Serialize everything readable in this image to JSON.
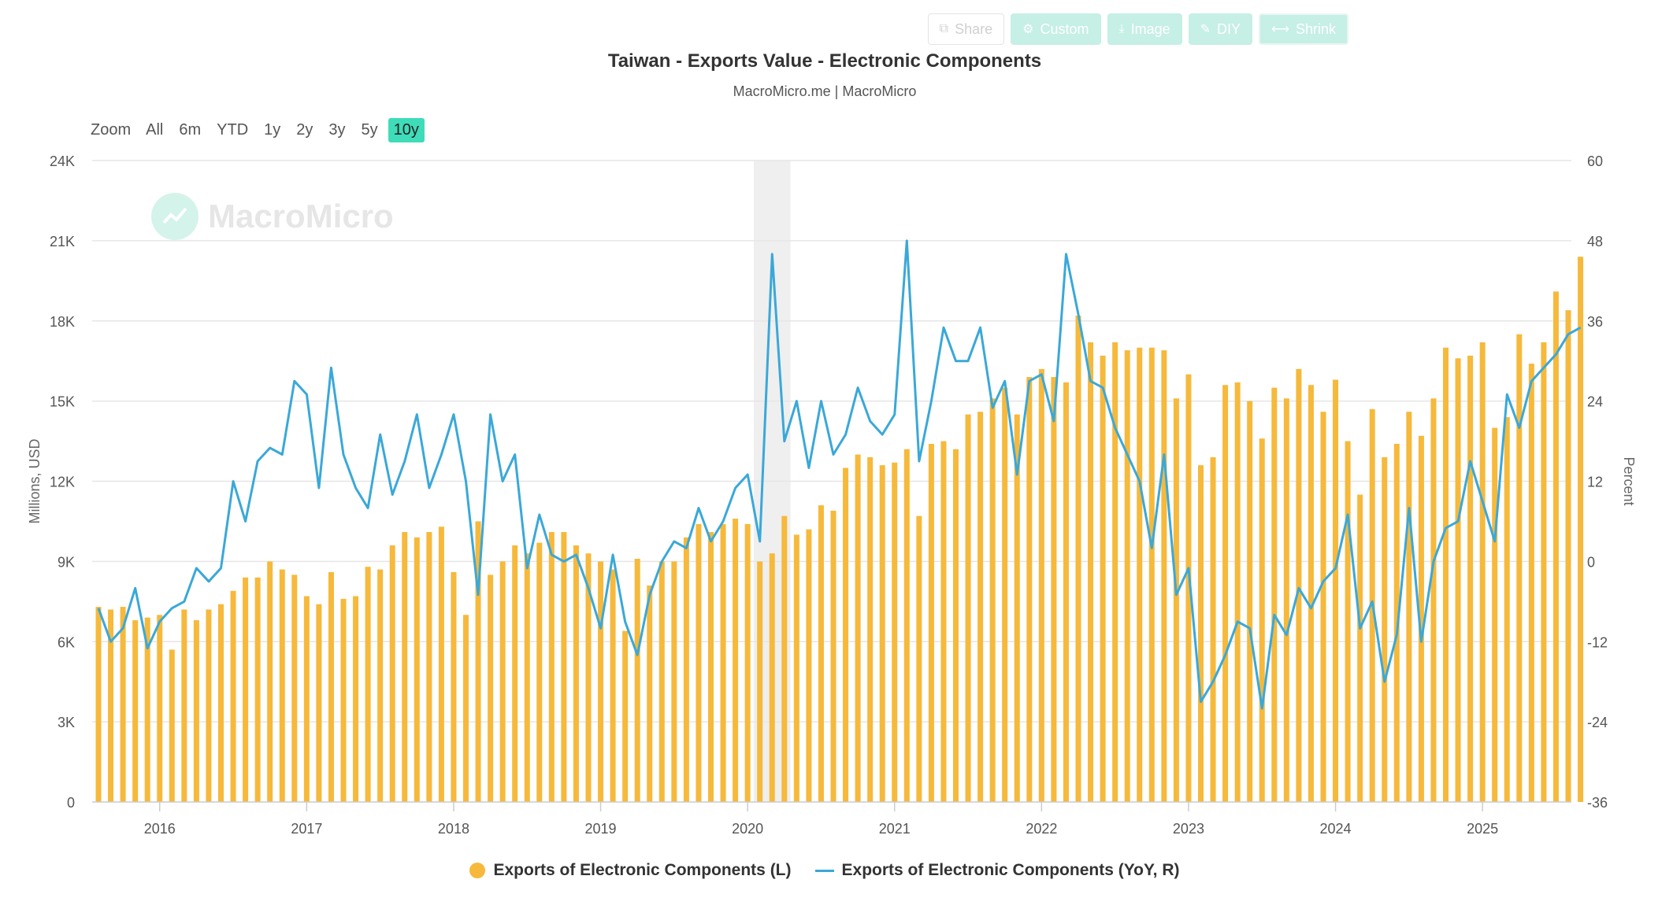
{
  "toolbar": {
    "buttons": [
      {
        "label": "Share",
        "icon": "share-icon"
      },
      {
        "label": "Custom",
        "icon": "gear-icon"
      },
      {
        "label": "Image",
        "icon": "download-icon"
      },
      {
        "label": "DIY",
        "icon": "pencil-icon"
      },
      {
        "label": "Shrink",
        "icon": "shrink-icon"
      }
    ]
  },
  "header": {
    "title": "Taiwan - Exports Value - Electronic Components",
    "subtitle": "MacroMicro.me | MacroMicro"
  },
  "zoom": {
    "label": "Zoom",
    "options": [
      "All",
      "6m",
      "YTD",
      "1y",
      "2y",
      "3y",
      "5y",
      "10y"
    ],
    "active": "10y"
  },
  "watermark": {
    "text": "MacroMicro"
  },
  "colors": {
    "bars": "#f6b93b",
    "line": "#3aa8d8",
    "accent": "#3fdcb9",
    "recession": "#efefef"
  },
  "chart_data": {
    "type": "bar+line",
    "title": "Taiwan - Exports Value - Electronic Components",
    "subtitle": "MacroMicro.me | MacroMicro",
    "ylabel_left": "Millions, USD",
    "ylabel_right": "Percent",
    "yticks_left": [
      "0",
      "3K",
      "6K",
      "9K",
      "12K",
      "15K",
      "18K",
      "21K",
      "24K"
    ],
    "yticks_right": [
      "-36",
      "-24",
      "-12",
      "0",
      "12",
      "24",
      "36",
      "48",
      "60"
    ],
    "ylim_left": [
      0,
      24000
    ],
    "ylim_right": [
      -36,
      60
    ],
    "xticks": [
      "2016",
      "2017",
      "2018",
      "2019",
      "2020",
      "2021",
      "2022",
      "2023",
      "2024",
      "2025"
    ],
    "start": "2015-08",
    "shaded_period": [
      "2020-02",
      "2020-04"
    ],
    "legend_placement": "bottom-center",
    "grid": true,
    "series": [
      {
        "name": "Exports of Electronic Components (L)",
        "type": "bar",
        "axis": "left",
        "values": [
          7300,
          7200,
          7300,
          6800,
          6900,
          7000,
          5700,
          7200,
          6800,
          7200,
          7400,
          7900,
          8400,
          8400,
          9000,
          8700,
          8500,
          7700,
          7400,
          8600,
          7600,
          7700,
          8800,
          8700,
          9600,
          10100,
          9900,
          10100,
          10300,
          8600,
          7000,
          10500,
          8500,
          9000,
          9600,
          9300,
          9700,
          10100,
          10100,
          9600,
          9300,
          9000,
          8700,
          6400,
          9100,
          8100,
          9000,
          9000,
          9900,
          10400,
          10100,
          10400,
          10600,
          10400,
          9000,
          9300,
          10700,
          10000,
          10200,
          11100,
          10900,
          12500,
          13000,
          12900,
          12600,
          12700,
          13200,
          10700,
          13400,
          13500,
          13200,
          14500,
          14600,
          15100,
          15500,
          14500,
          15900,
          16200,
          15900,
          15700,
          18200,
          17200,
          16700,
          17200,
          16900,
          17000,
          17000,
          16900,
          15100,
          16000,
          12600,
          12900,
          15600,
          15700,
          15000,
          13600,
          15500,
          15100,
          16200,
          15600,
          14600,
          15800,
          13500,
          11500,
          14700,
          12900,
          13400,
          14600,
          13700,
          15100,
          17000,
          16600,
          16700,
          17200,
          14000,
          14400,
          17500,
          16400,
          17200,
          19100,
          18400,
          20400
        ]
      },
      {
        "name": "Exports of Electronic Components (YoY, R)",
        "type": "line",
        "axis": "right",
        "values": [
          -7,
          -12,
          -10,
          -4,
          -13,
          -9,
          -7,
          -6,
          -1,
          -3,
          -1,
          12,
          6,
          15,
          17,
          16,
          27,
          25,
          11,
          29,
          16,
          11,
          8,
          19,
          10,
          15,
          22,
          11,
          16,
          22,
          12,
          -5,
          22,
          12,
          16,
          -1,
          7,
          1,
          0,
          1,
          -4,
          -10,
          1,
          -9,
          -14,
          -5,
          0,
          3,
          2,
          8,
          3,
          6,
          11,
          13,
          3,
          46,
          18,
          24,
          14,
          24,
          16,
          19,
          26,
          21,
          19,
          22,
          48,
          15,
          24,
          35,
          30,
          30,
          35,
          23,
          27,
          13,
          27,
          28,
          21,
          46,
          37,
          27,
          26,
          20,
          16,
          12,
          2,
          16,
          -5,
          -1,
          -21,
          -18,
          -14,
          -9,
          -10,
          -22,
          -8,
          -11,
          -4,
          -7,
          -3,
          -1,
          7,
          -10,
          -6,
          -18,
          -11,
          8,
          -12,
          0,
          5,
          6,
          15,
          9,
          3,
          25,
          20,
          27,
          29,
          31,
          34,
          35
        ]
      }
    ]
  }
}
